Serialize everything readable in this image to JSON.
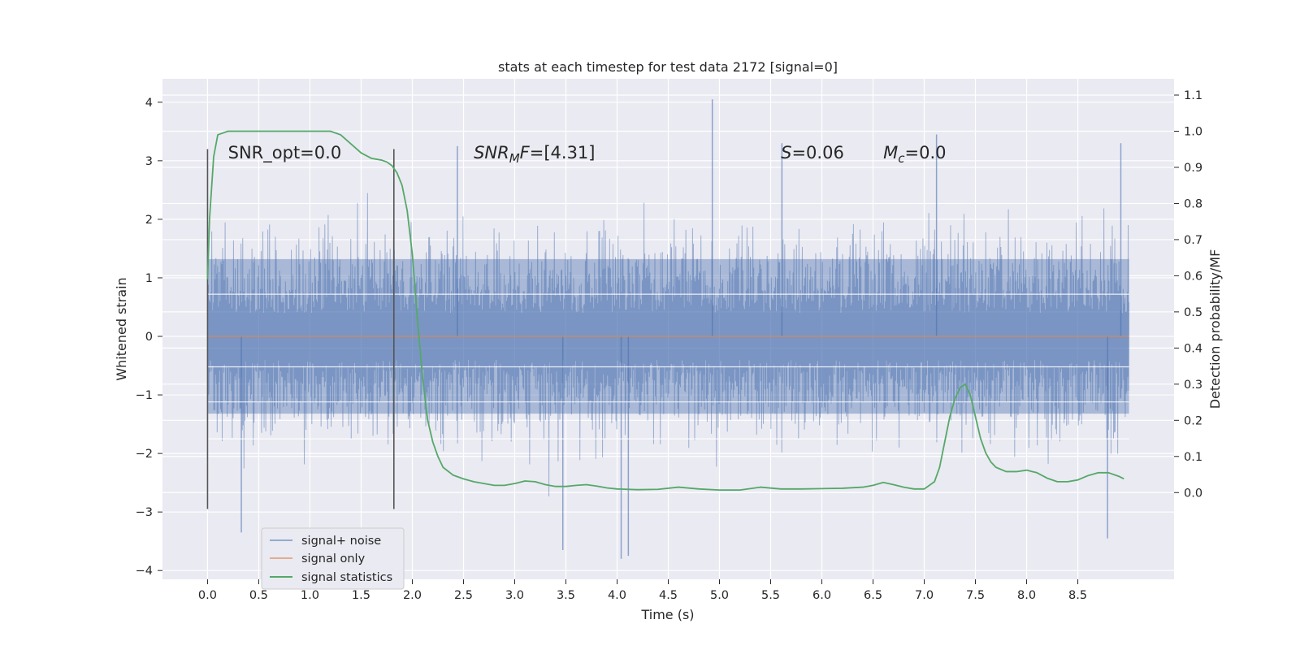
{
  "chart_data": {
    "type": "line",
    "title": "stats at each timestep for test data 2172 [signal=0]",
    "xlabel": "Time (s)",
    "ylabel": "Whitened strain",
    "y2label": "Detection probability/MF",
    "xlim": [
      -0.44,
      9.44
    ],
    "ylim": [
      -4.15,
      4.4
    ],
    "y2lim": [
      -0.24,
      1.145
    ],
    "xticks": [
      0.0,
      0.5,
      1.0,
      1.5,
      2.0,
      2.5,
      3.0,
      3.5,
      4.0,
      4.5,
      5.0,
      5.5,
      6.0,
      6.5,
      7.0,
      7.5,
      8.0,
      8.5
    ],
    "xtick_labels": [
      "0.0",
      "0.5",
      "1.0",
      "1.5",
      "2.0",
      "2.5",
      "3.0",
      "3.5",
      "4.0",
      "4.5",
      "5.0",
      "5.5",
      "6.0",
      "6.5",
      "7.0",
      "7.5",
      "8.0",
      "8.5"
    ],
    "yticks": [
      4,
      3,
      2,
      1,
      0,
      -1,
      -2,
      -3,
      -4
    ],
    "ytick_labels": [
      "4",
      "3",
      "2",
      "1",
      "0",
      "−1",
      "−2",
      "−3",
      "−4"
    ],
    "y2ticks": [
      1.1,
      1.0,
      0.9,
      0.8,
      0.7,
      0.6,
      0.5,
      0.4,
      0.3,
      0.2,
      0.1,
      0.0
    ],
    "y2tick_labels": [
      "1.1",
      "1.0",
      "0.9",
      "0.8",
      "0.7",
      "0.6",
      "0.5",
      "0.4",
      "0.3",
      "0.2",
      "0.1",
      "0.0"
    ],
    "grid": true,
    "legend_position": "lower-left",
    "series": [
      {
        "name": "signal+ noise",
        "axis": "left",
        "color": "#4c72b0",
        "description_range": {
          "x": [
            0.0,
            9.0
          ],
          "y_min": -3.8,
          "y_max": 4.05
        },
        "notable_peaks": [
          [
            4.93,
            4.05
          ],
          [
            5.61,
            3.3
          ],
          [
            7.12,
            3.45
          ],
          [
            8.92,
            3.3
          ],
          [
            2.44,
            3.25
          ]
        ],
        "notable_troughs": [
          [
            4.04,
            -3.8
          ],
          [
            4.11,
            -3.75
          ],
          [
            3.47,
            -3.65
          ],
          [
            8.79,
            -3.45
          ],
          [
            0.33,
            -3.35
          ]
        ]
      },
      {
        "name": "signal only",
        "axis": "left",
        "color": "#dd8452",
        "x": [
          0.0,
          9.0
        ],
        "y": [
          0.0,
          0.0
        ]
      },
      {
        "name": "signal statistics",
        "axis": "right",
        "color": "#55a868",
        "x": [
          0.0,
          0.02,
          0.06,
          0.1,
          0.15,
          0.2,
          0.3,
          0.5,
          0.8,
          1.0,
          1.1,
          1.2,
          1.3,
          1.4,
          1.5,
          1.6,
          1.7,
          1.75,
          1.8,
          1.85,
          1.9,
          1.95,
          2.0,
          2.05,
          2.1,
          2.15,
          2.2,
          2.25,
          2.3,
          2.4,
          2.5,
          2.6,
          2.7,
          2.8,
          2.9,
          3.0,
          3.1,
          3.2,
          3.3,
          3.4,
          3.5,
          3.6,
          3.7,
          3.8,
          3.9,
          4.0,
          4.2,
          4.4,
          4.6,
          4.8,
          5.0,
          5.2,
          5.4,
          5.6,
          5.8,
          6.0,
          6.2,
          6.4,
          6.5,
          6.6,
          6.7,
          6.8,
          6.9,
          7.0,
          7.1,
          7.15,
          7.2,
          7.25,
          7.3,
          7.35,
          7.4,
          7.45,
          7.5,
          7.55,
          7.6,
          7.65,
          7.7,
          7.8,
          7.9,
          8.0,
          8.1,
          8.2,
          8.3,
          8.4,
          8.5,
          8.6,
          8.7,
          8.8,
          8.9,
          8.95
        ],
        "y": [
          0.59,
          0.76,
          0.93,
          0.99,
          0.995,
          1.0,
          1.0,
          1.0,
          1.0,
          1.0,
          1.0,
          1.0,
          0.99,
          0.965,
          0.94,
          0.925,
          0.92,
          0.915,
          0.905,
          0.885,
          0.85,
          0.78,
          0.66,
          0.48,
          0.32,
          0.2,
          0.14,
          0.1,
          0.07,
          0.048,
          0.038,
          0.03,
          0.025,
          0.02,
          0.02,
          0.025,
          0.032,
          0.03,
          0.022,
          0.017,
          0.017,
          0.02,
          0.022,
          0.018,
          0.013,
          0.01,
          0.008,
          0.009,
          0.015,
          0.01,
          0.007,
          0.007,
          0.015,
          0.01,
          0.01,
          0.011,
          0.012,
          0.015,
          0.02,
          0.028,
          0.022,
          0.015,
          0.01,
          0.01,
          0.03,
          0.07,
          0.14,
          0.21,
          0.26,
          0.29,
          0.3,
          0.27,
          0.21,
          0.15,
          0.11,
          0.085,
          0.07,
          0.058,
          0.058,
          0.062,
          0.055,
          0.04,
          0.03,
          0.03,
          0.035,
          0.047,
          0.055,
          0.055,
          0.045,
          0.038
        ]
      }
    ],
    "vlines": [
      {
        "x": 0.0,
        "y_range": [
          -2.95,
          3.2
        ],
        "color": "#555555"
      },
      {
        "x": 1.82,
        "y_range": [
          -2.95,
          3.2
        ],
        "color": "#555555"
      }
    ],
    "hlines_white": [
      0.72,
      -0.52,
      -1.12,
      -1.75
    ],
    "annotations": [
      {
        "x": 0.2,
        "y": 3.15,
        "text": "SNR_opt=0.0"
      },
      {
        "x": 2.6,
        "y": 3.15,
        "parts": [
          [
            "SNR",
            "italic"
          ],
          [
            "M",
            "italic-sub"
          ],
          [
            "F=[4.31]",
            "mixed-F-italic"
          ]
        ],
        "text": "SNRMF=[4.31]"
      },
      {
        "x": 5.6,
        "y": 3.15,
        "parts": [
          [
            "S",
            "italic"
          ],
          [
            "=0.06",
            "normal"
          ]
        ],
        "text": "S=0.06"
      },
      {
        "x": 6.6,
        "y": 3.15,
        "parts": [
          [
            "M",
            "italic"
          ],
          [
            "c",
            "italic-sub"
          ],
          [
            "=0.0",
            "normal"
          ]
        ],
        "text": "Mc=0.0"
      }
    ]
  }
}
